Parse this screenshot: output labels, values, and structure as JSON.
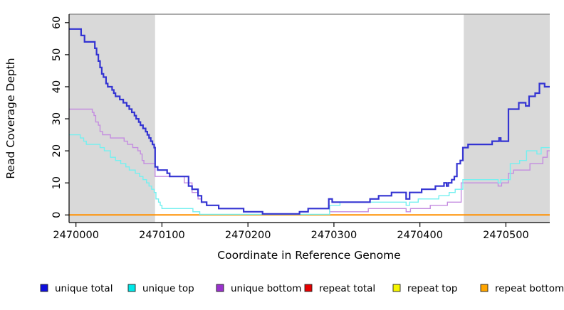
{
  "figure": {
    "xlabel": "Coordinate in Reference Genome",
    "ylabel": "Read Coverage Depth"
  },
  "chart_data": {
    "type": "line",
    "subtype": "step",
    "title": "",
    "xlabel": "Coordinate in Reference Genome",
    "ylabel": "Read Coverage Depth",
    "xlim": [
      2469992,
      2470551
    ],
    "ylim": [
      0,
      60
    ],
    "x_ticks": [
      2470000,
      2470100,
      2470200,
      2470300,
      2470400,
      2470500
    ],
    "y_ticks": [
      0,
      10,
      20,
      30,
      40,
      50,
      60
    ],
    "grid": false,
    "legend_position": "bottom",
    "plot_bg": "#ffffff",
    "shaded_region_color": "#d9d9d9",
    "top_border_color": "#8f8f8f",
    "shaded_regions": [
      {
        "name": "repeat-region-left",
        "x0": 2469992,
        "x1": 2470092
      },
      {
        "name": "repeat-region-right",
        "x0": 2470451,
        "x1": 2470551
      }
    ],
    "series": [
      {
        "name": "unique total",
        "line_color": "#3434d2",
        "legend_color": "#0f0fdc",
        "width": 2.2,
        "points": [
          [
            2469992,
            58
          ],
          [
            2470006,
            56
          ],
          [
            2470010,
            54
          ],
          [
            2470022,
            52
          ],
          [
            2470024,
            50
          ],
          [
            2470026,
            48
          ],
          [
            2470028,
            46
          ],
          [
            2470030,
            44
          ],
          [
            2470032,
            43
          ],
          [
            2470035,
            41
          ],
          [
            2470037,
            40
          ],
          [
            2470042,
            39
          ],
          [
            2470044,
            38
          ],
          [
            2470046,
            37
          ],
          [
            2470051,
            36
          ],
          [
            2470055,
            35
          ],
          [
            2470059,
            34
          ],
          [
            2470062,
            33
          ],
          [
            2470065,
            32
          ],
          [
            2470068,
            31
          ],
          [
            2470070,
            30
          ],
          [
            2470073,
            29
          ],
          [
            2470075,
            28
          ],
          [
            2470078,
            27
          ],
          [
            2470081,
            26
          ],
          [
            2470083,
            25
          ],
          [
            2470085,
            24
          ],
          [
            2470087,
            23
          ],
          [
            2470089,
            22
          ],
          [
            2470091,
            21
          ],
          [
            2470092,
            15
          ],
          [
            2470095,
            14
          ],
          [
            2470106,
            13
          ],
          [
            2470109,
            12
          ],
          [
            2470131,
            9
          ],
          [
            2470135,
            8
          ],
          [
            2470142,
            6
          ],
          [
            2470146,
            4
          ],
          [
            2470152,
            3
          ],
          [
            2470166,
            2
          ],
          [
            2470195,
            1
          ],
          [
            2470217,
            0
          ],
          [
            2470260,
            1
          ],
          [
            2470270,
            2
          ],
          [
            2470294,
            5
          ],
          [
            2470298,
            4
          ],
          [
            2470342,
            5
          ],
          [
            2470352,
            6
          ],
          [
            2470367,
            7
          ],
          [
            2470384,
            5
          ],
          [
            2470388,
            7
          ],
          [
            2470402,
            8
          ],
          [
            2470418,
            9
          ],
          [
            2470428,
            10
          ],
          [
            2470431,
            9
          ],
          [
            2470433,
            10
          ],
          [
            2470437,
            11
          ],
          [
            2470440,
            12
          ],
          [
            2470443,
            16
          ],
          [
            2470447,
            17
          ],
          [
            2470450,
            21
          ],
          [
            2470456,
            22
          ],
          [
            2470484,
            23
          ],
          [
            2470492,
            24
          ],
          [
            2470494,
            23
          ],
          [
            2470503,
            33
          ],
          [
            2470515,
            35
          ],
          [
            2470523,
            34
          ],
          [
            2470527,
            37
          ],
          [
            2470534,
            38
          ],
          [
            2470539,
            41
          ],
          [
            2470545,
            40
          ],
          [
            2470551,
            40
          ]
        ]
      },
      {
        "name": "unique top",
        "line_color": "#74f0f0",
        "legend_color": "#00e8e8",
        "width": 1.4,
        "points": [
          [
            2469992,
            25
          ],
          [
            2470005,
            24
          ],
          [
            2470009,
            23
          ],
          [
            2470012,
            22
          ],
          [
            2470028,
            21
          ],
          [
            2470033,
            20
          ],
          [
            2470040,
            18
          ],
          [
            2470046,
            17
          ],
          [
            2470052,
            16
          ],
          [
            2470058,
            15
          ],
          [
            2470062,
            14
          ],
          [
            2470069,
            13
          ],
          [
            2470074,
            12
          ],
          [
            2470078,
            11
          ],
          [
            2470082,
            10
          ],
          [
            2470085,
            9
          ],
          [
            2470088,
            8
          ],
          [
            2470091,
            7
          ],
          [
            2470093,
            5
          ],
          [
            2470096,
            4
          ],
          [
            2470098,
            3
          ],
          [
            2470100,
            2
          ],
          [
            2470136,
            1
          ],
          [
            2470144,
            0
          ],
          [
            2470295,
            3
          ],
          [
            2470307,
            4
          ],
          [
            2470384,
            3
          ],
          [
            2470388,
            4
          ],
          [
            2470398,
            5
          ],
          [
            2470422,
            6
          ],
          [
            2470434,
            7
          ],
          [
            2470441,
            8
          ],
          [
            2470450,
            11
          ],
          [
            2470491,
            10
          ],
          [
            2470494,
            11
          ],
          [
            2470505,
            16
          ],
          [
            2470516,
            17
          ],
          [
            2470524,
            20
          ],
          [
            2470536,
            19
          ],
          [
            2470541,
            21
          ],
          [
            2470551,
            21
          ]
        ]
      },
      {
        "name": "unique bottom",
        "line_color": "#c48ce0",
        "legend_color": "#9932cc",
        "width": 1.4,
        "points": [
          [
            2469992,
            33
          ],
          [
            2470019,
            32
          ],
          [
            2470021,
            31
          ],
          [
            2470023,
            29
          ],
          [
            2470026,
            28
          ],
          [
            2470028,
            26
          ],
          [
            2470031,
            25
          ],
          [
            2470040,
            24
          ],
          [
            2470056,
            23
          ],
          [
            2470060,
            22
          ],
          [
            2470066,
            21
          ],
          [
            2470072,
            20
          ],
          [
            2470075,
            19
          ],
          [
            2470077,
            17
          ],
          [
            2470079,
            16
          ],
          [
            2470092,
            12
          ],
          [
            2470126,
            10
          ],
          [
            2470135,
            7
          ],
          [
            2470142,
            5
          ],
          [
            2470146,
            4
          ],
          [
            2470152,
            3
          ],
          [
            2470166,
            2
          ],
          [
            2470195,
            1
          ],
          [
            2470217,
            0
          ],
          [
            2470260,
            1
          ],
          [
            2470270,
            2
          ],
          [
            2470295,
            1
          ],
          [
            2470340,
            2
          ],
          [
            2470384,
            1
          ],
          [
            2470389,
            2
          ],
          [
            2470412,
            3
          ],
          [
            2470432,
            4
          ],
          [
            2470448,
            10
          ],
          [
            2470491,
            9
          ],
          [
            2470495,
            10
          ],
          [
            2470503,
            13
          ],
          [
            2470509,
            14
          ],
          [
            2470528,
            16
          ],
          [
            2470543,
            18
          ],
          [
            2470548,
            20
          ],
          [
            2470551,
            20
          ]
        ]
      },
      {
        "name": "repeat total",
        "line_color": "#dd0000",
        "legend_color": "#e60000",
        "width": 1.4,
        "points": [
          [
            2469992,
            0
          ],
          [
            2470551,
            0
          ]
        ]
      },
      {
        "name": "repeat top",
        "line_color": "#f0f000",
        "legend_color": "#f5f500",
        "width": 1.4,
        "points": [
          [
            2469992,
            0
          ],
          [
            2470551,
            0
          ]
        ]
      },
      {
        "name": "repeat bottom",
        "line_color": "#ff9000",
        "legend_color": "#ffa500",
        "width": 2,
        "points": [
          [
            2469992,
            0
          ],
          [
            2470551,
            0
          ]
        ]
      }
    ]
  }
}
